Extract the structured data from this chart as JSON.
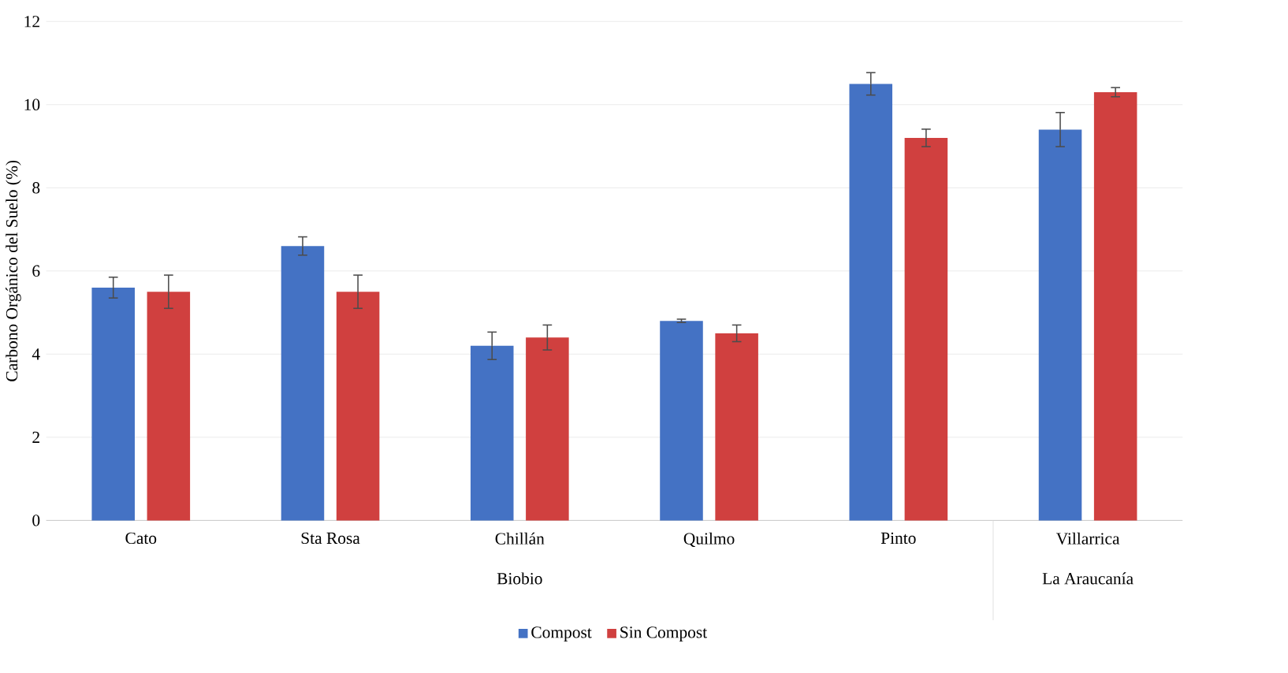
{
  "chart_data": {
    "type": "bar",
    "ylabel": "Carbono Orgánico del Suelo (%)",
    "categories": [
      "Cato",
      "Sta Rosa",
      "Chillán",
      "Quilmo",
      "Pinto",
      "Villarrica"
    ],
    "series": [
      {
        "name": "Compost",
        "color": "#4472c4",
        "values": [
          5.6,
          6.6,
          4.2,
          4.8,
          10.5,
          9.4
        ],
        "errors": [
          0.25,
          0.22,
          0.33,
          0.04,
          0.27,
          0.41
        ]
      },
      {
        "name": "Sin Compost",
        "color": "#d0403f",
        "values": [
          5.5,
          5.5,
          4.4,
          4.5,
          9.2,
          10.3
        ],
        "errors": [
          0.4,
          0.4,
          0.3,
          0.2,
          0.21,
          0.11
        ]
      }
    ],
    "annotations": [
      "Biobio",
      "La Araucanía"
    ],
    "ylim": [
      0,
      12
    ],
    "yticks": [
      0,
      2,
      4,
      6,
      8,
      10,
      12
    ],
    "grid": "y",
    "legend": "bottom"
  }
}
